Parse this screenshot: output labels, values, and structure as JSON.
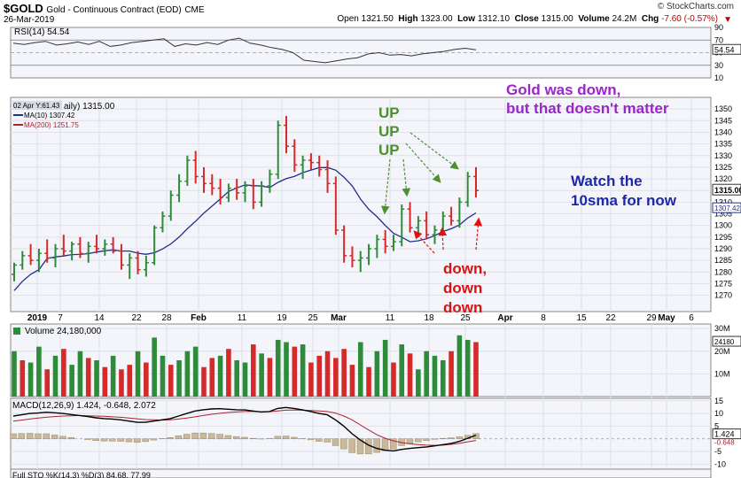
{
  "header": {
    "symbol": "$GOLD",
    "name": "Gold - Continuous Contract (EOD)",
    "exchange": "CME",
    "date": "26-Mar-2019",
    "brand": "© StockCharts.com",
    "open_label": "Open",
    "open": "1321.50",
    "high_label": "High",
    "high": "1323.00",
    "low_label": "Low",
    "low": "1312.10",
    "close_label": "Close",
    "close": "1315.00",
    "volume_label": "Volume",
    "volume": "24.2M",
    "chg_label": "Chg",
    "chg": "-7.60 (-0.57%)"
  },
  "colors": {
    "up": "#2e8b3a",
    "down": "#d42a2a",
    "ma10": "#1f2f8f",
    "ma200": "#b0202a",
    "annot_green": "#4f8f2f",
    "annot_purple": "#9a25c9",
    "annot_blue": "#1d28a8",
    "annot_red": "#e01010"
  },
  "chart_data": [
    {
      "type": "line",
      "title": "RSI(14) 54.54",
      "current": 54.54,
      "ylim": [
        10,
        90
      ],
      "yticks": [
        90,
        70,
        50,
        30,
        10
      ],
      "values": [
        65,
        63,
        66,
        68,
        62,
        64,
        67,
        63,
        68,
        60,
        62,
        66,
        68,
        70,
        72,
        60,
        64,
        62,
        66,
        63,
        70,
        73,
        65,
        62,
        58,
        55,
        50,
        38,
        36,
        34,
        37,
        40,
        42,
        48,
        50,
        46,
        47,
        45,
        48,
        50,
        52,
        55,
        57,
        54.54
      ]
    },
    {
      "type": "candlestick",
      "title": "$GOLD (Daily) 1315.00",
      "hover_label": "02 Apr Y:61.43",
      "ylim": [
        1263,
        1355
      ],
      "yticks": [
        1350,
        1345,
        1340,
        1335,
        1330,
        1325,
        1320,
        1315,
        1310,
        1305,
        1300,
        1295,
        1290,
        1285,
        1280,
        1275,
        1270
      ],
      "x_tick_labels": [
        "2019",
        "7",
        "14",
        "22",
        "28",
        "Feb",
        "11",
        "19",
        "25",
        "Mar",
        "11",
        "18",
        "25",
        "Apr",
        "8",
        "15",
        "22",
        "29",
        "May",
        "6"
      ],
      "series": [
        {
          "name": "MA(10) 1307.42",
          "current": 1307.42
        },
        {
          "name": "MA(200) 1251.75",
          "current": 1251.75
        }
      ],
      "ohlc": [
        [
          1279,
          1284,
          1276,
          1283
        ],
        [
          1283,
          1289,
          1281,
          1287
        ],
        [
          1287,
          1292,
          1283,
          1285
        ],
        [
          1285,
          1290,
          1280,
          1288
        ],
        [
          1288,
          1294,
          1284,
          1286
        ],
        [
          1286,
          1292,
          1282,
          1290
        ],
        [
          1290,
          1296,
          1287,
          1289
        ],
        [
          1289,
          1293,
          1285,
          1292
        ],
        [
          1292,
          1295,
          1286,
          1288
        ],
        [
          1288,
          1293,
          1284,
          1291
        ],
        [
          1291,
          1296,
          1288,
          1290
        ],
        [
          1290,
          1294,
          1287,
          1292
        ],
        [
          1292,
          1295,
          1288,
          1289
        ],
        [
          1289,
          1292,
          1281,
          1283
        ],
        [
          1283,
          1288,
          1277,
          1286
        ],
        [
          1286,
          1289,
          1279,
          1281
        ],
        [
          1281,
          1287,
          1278,
          1284
        ],
        [
          1284,
          1300,
          1283,
          1299
        ],
        [
          1299,
          1306,
          1297,
          1304
        ],
        [
          1304,
          1315,
          1302,
          1313
        ],
        [
          1313,
          1322,
          1310,
          1319
        ],
        [
          1319,
          1330,
          1317,
          1328
        ],
        [
          1328,
          1332,
          1318,
          1321
        ],
        [
          1321,
          1325,
          1314,
          1318
        ],
        [
          1318,
          1322,
          1313,
          1316
        ],
        [
          1316,
          1320,
          1309,
          1312
        ],
        [
          1312,
          1318,
          1310,
          1316
        ],
        [
          1316,
          1320,
          1311,
          1314
        ],
        [
          1314,
          1319,
          1310,
          1317
        ],
        [
          1317,
          1320,
          1307,
          1310
        ],
        [
          1310,
          1319,
          1308,
          1317
        ],
        [
          1317,
          1324,
          1314,
          1322
        ],
        [
          1322,
          1345,
          1320,
          1343
        ],
        [
          1343,
          1347,
          1331,
          1334
        ],
        [
          1334,
          1337,
          1323,
          1326
        ],
        [
          1326,
          1330,
          1320,
          1328
        ],
        [
          1328,
          1331,
          1324,
          1327
        ],
        [
          1327,
          1330,
          1321,
          1324
        ],
        [
          1324,
          1328,
          1314,
          1318
        ],
        [
          1318,
          1321,
          1296,
          1298
        ],
        [
          1298,
          1300,
          1284,
          1287
        ],
        [
          1287,
          1291,
          1282,
          1285
        ],
        [
          1285,
          1289,
          1280,
          1286
        ],
        [
          1286,
          1292,
          1283,
          1290
        ],
        [
          1290,
          1296,
          1286,
          1294
        ],
        [
          1294,
          1298,
          1288,
          1291
        ],
        [
          1291,
          1296,
          1289,
          1293
        ],
        [
          1293,
          1309,
          1291,
          1307
        ],
        [
          1307,
          1310,
          1297,
          1299
        ],
        [
          1299,
          1304,
          1295,
          1302
        ],
        [
          1302,
          1306,
          1294,
          1296
        ],
        [
          1296,
          1300,
          1292,
          1298
        ],
        [
          1298,
          1306,
          1296,
          1304
        ],
        [
          1304,
          1308,
          1300,
          1302
        ],
        [
          1302,
          1312,
          1299,
          1310
        ],
        [
          1310,
          1323,
          1308,
          1321
        ],
        [
          1321,
          1325,
          1312,
          1315
        ]
      ]
    },
    {
      "type": "bar",
      "title": "Volume 24,180,000",
      "current_label": "24180",
      "ylim": [
        0,
        32
      ],
      "yticks": [
        30,
        20,
        10
      ],
      "ytick_labels": [
        "30M",
        "20M",
        "10M"
      ],
      "values": [
        20,
        16,
        15,
        22,
        12,
        18,
        21,
        14,
        20,
        17,
        16,
        13,
        18,
        12,
        14,
        20,
        15,
        26,
        18,
        14,
        16,
        20,
        22,
        13,
        17,
        18,
        21,
        16,
        15,
        23,
        19,
        17,
        25,
        24,
        22,
        23,
        15,
        18,
        20,
        17,
        21,
        14,
        24,
        13,
        20,
        25,
        15,
        23,
        19,
        12,
        20,
        18,
        16,
        20,
        27,
        25,
        24
      ],
      "colors": [
        "up",
        "down",
        "up",
        "up",
        "down",
        "up",
        "down",
        "up",
        "up",
        "down",
        "up",
        "down",
        "up",
        "down",
        "down",
        "up",
        "down",
        "up",
        "up",
        "down",
        "up",
        "up",
        "up",
        "down",
        "down",
        "up",
        "down",
        "up",
        "up",
        "down",
        "up",
        "down",
        "up",
        "up",
        "down",
        "up",
        "down",
        "down",
        "down",
        "down",
        "down",
        "down",
        "up",
        "down",
        "up",
        "up",
        "down",
        "up",
        "down",
        "up",
        "up",
        "up",
        "up",
        "down",
        "up",
        "up",
        "down"
      ]
    },
    {
      "type": "line",
      "title": "MACD(12,26,9) 1.424, -0.648, 2.072",
      "ylim": [
        -12,
        16
      ],
      "yticks": [
        15,
        10,
        5,
        -5,
        -10
      ],
      "current_labels": [
        "1.424",
        "-0.648"
      ],
      "macd": [
        9,
        9.5,
        10,
        10.2,
        10.5,
        10.3,
        10,
        9.6,
        9.2,
        8.8,
        8.3,
        8,
        7.8,
        7.5,
        7,
        6.5,
        6.5,
        7,
        7.5,
        8,
        9,
        10,
        11,
        11.5,
        11.8,
        11.9,
        11.7,
        11.5,
        11.4,
        11,
        10.6,
        10.8,
        12,
        12.4,
        12,
        11.4,
        10.8,
        10,
        9.5,
        7.5,
        5,
        2,
        -0.5,
        -2.5,
        -3.8,
        -4.5,
        -4.8,
        -4.2,
        -3.8,
        -3.5,
        -3.2,
        -2.8,
        -2.3,
        -1.8,
        -1,
        0.2,
        1.424
      ],
      "signal": [
        7,
        7.4,
        7.8,
        8.2,
        8.5,
        8.8,
        9,
        9.1,
        9.2,
        9.1,
        9,
        8.9,
        8.7,
        8.5,
        8.2,
        7.9,
        7.6,
        7.5,
        7.4,
        7.5,
        7.8,
        8.2,
        8.7,
        9.2,
        9.7,
        10.1,
        10.4,
        10.6,
        10.8,
        10.8,
        10.7,
        10.7,
        11,
        11.3,
        11.4,
        11.3,
        11.2,
        11,
        10.8,
        10.2,
        9,
        7.5,
        5.5,
        3.5,
        1.6,
        0.2,
        -0.8,
        -1.5,
        -2,
        -2.3,
        -2.5,
        -2.6,
        -2.5,
        -2.2,
        -1.8,
        -1.2,
        -0.648
      ],
      "histogram": [
        2,
        2.1,
        2.2,
        2,
        2,
        1.5,
        1,
        0.5,
        0,
        -0.3,
        -0.7,
        -0.9,
        -0.9,
        -1,
        -1.2,
        -1.4,
        -1.1,
        -0.5,
        0.1,
        0.5,
        1.2,
        1.8,
        2.3,
        2.3,
        2.1,
        1.8,
        1.3,
        0.9,
        0.6,
        0.2,
        -0.1,
        0.1,
        1,
        1.1,
        0.6,
        0.1,
        -0.4,
        -1,
        -1.3,
        -2.7,
        -4,
        -5.5,
        -6,
        -6,
        -5.4,
        -4.7,
        -4,
        -2.7,
        -1.8,
        -1.2,
        -0.7,
        -0.2,
        0.2,
        0.4,
        0.8,
        1.4,
        2.072
      ]
    }
  ],
  "annotations": {
    "up1": "UP",
    "up2": "UP",
    "up3": "UP",
    "gold_line1": "Gold was down,",
    "gold_line2": "but that doesn't matter",
    "watch_line1": "Watch the",
    "watch_line2": "10sma for now",
    "down1": "down,",
    "down2": "down",
    "down3": "down"
  },
  "footer_partial": "Full STO %K(14,3) %D(3) 84.68, 77.99"
}
